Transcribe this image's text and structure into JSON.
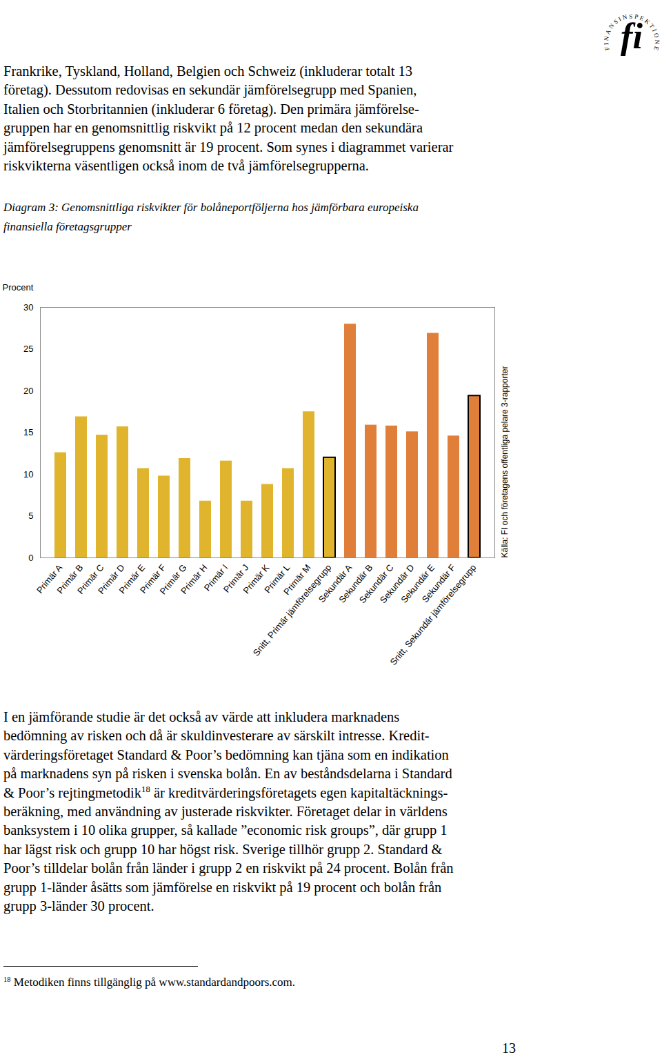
{
  "logo": {
    "ring": "FINANSINSPEKTIONEN",
    "mark": "fi"
  },
  "paragraph_1": [
    "Frankrike, Tyskland, Holland, Belgien och Schweiz (inkluderar totalt 13",
    "företag). Dessutom redovisas en sekundär jämförelsegrupp med Spanien,",
    "Italien och Storbritannien (inkluderar 6 företag). Den primära jämförelse-",
    "gruppen har en genomsnittlig riskvikt på 12 procent medan den sekundära",
    "jämförelsegruppens genomsnitt är 19 procent. Som synes i diagrammet varierar",
    "riskvikterna väsentligen också inom de två jämförelsegrupperna."
  ],
  "caption": [
    "Diagram 3: Genomsnittliga riskvikter för bolåneportföljerna hos jämförbara europeiska",
    "finansiella företagsgrupper"
  ],
  "chart_data": {
    "type": "bar",
    "y_label": "Procent",
    "annotation": "Källa: FI och företagens offentliga pelare 3-rapporter",
    "categories": [
      "Primär A",
      "Primär B",
      "Primär C",
      "Primär D",
      "Primär E",
      "Primär F",
      "Primär G",
      "Primär H",
      "Primär I",
      "Primär J",
      "Primär K",
      "Primär L",
      "Primär M",
      "Snitt, Primär jämförelsegrupp",
      "Sekundär A",
      "Sekundär B",
      "Sekundär C",
      "Sekundär D",
      "Sekundär E",
      "Sekundär F",
      "Snitt, Sekundär jämförelsegrupp"
    ],
    "values": [
      12.6,
      16.9,
      14.7,
      15.7,
      10.7,
      9.8,
      11.9,
      6.8,
      11.6,
      6.8,
      8.8,
      10.7,
      17.5,
      12.0,
      28.0,
      15.9,
      15.8,
      15.1,
      26.9,
      14.6,
      19.4
    ],
    "colors": [
      "#e0b42c",
      "#e0b42c",
      "#e0b42c",
      "#e0b42c",
      "#e0b42c",
      "#e0b42c",
      "#e0b42c",
      "#e0b42c",
      "#e0b42c",
      "#e0b42c",
      "#e0b42c",
      "#e0b42c",
      "#e0b42c",
      "#e0b42c",
      "#e07f3a",
      "#e07f3a",
      "#e07f3a",
      "#e07f3a",
      "#e07f3a",
      "#e07f3a",
      "#e07f3a"
    ],
    "ylim": [
      0,
      30
    ],
    "yticks": [
      0,
      5,
      10,
      15,
      20,
      25,
      30
    ],
    "grid": false
  },
  "paragraph_2": [
    "I en jämförande studie är det också av värde att inkludera marknadens",
    "bedömning av risken och då är skuldinvesterare av särskilt intresse. Kredit-",
    "värderingsföretaget Standard & Poor’s bedömning kan tjäna som en indikation",
    "på marknadens syn på risken i svenska bolån. En av beståndsdelarna i Standard",
    {
      "before": "& Poor’s rejtingmetodik",
      "sup": "18",
      "after": " är kreditvärderingsföretagets egen kapitaltäcknings-"
    },
    "beräkning, med användning av justerade riskvikter. Företaget delar in världens",
    "banksystem i 10 olika grupper, så kallade ”economic risk groups”, där grupp 1",
    "har lägst risk och grupp 10 har högst risk. Sverige tillhör grupp 2. Standard &",
    "Poor’s tilldelar bolån från länder i grupp 2 en riskvikt på 24 procent. Bolån från",
    "grupp 1-länder åsätts som jämförelse en riskvikt på 19 procent och bolån från",
    "grupp 3-länder 30 procent."
  ],
  "footnote": {
    "sup": "18",
    "text": " Metodiken finns tillgänglig på www.standardandpoors.com."
  },
  "page_number": "13"
}
